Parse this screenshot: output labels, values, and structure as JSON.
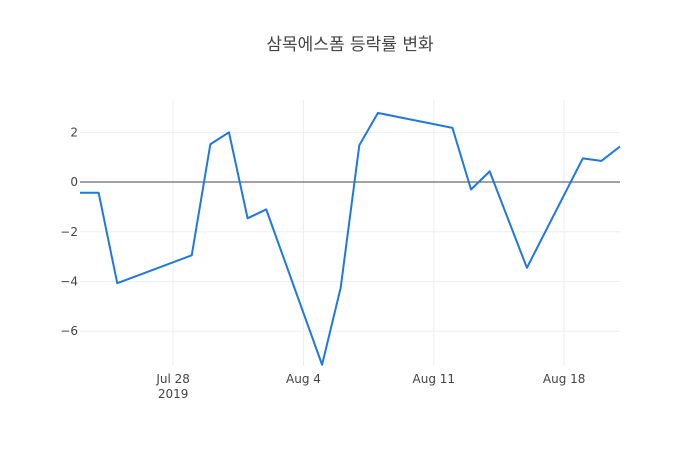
{
  "chart_data": {
    "type": "line",
    "title": "삼목에스폼 등락률 변화",
    "xlabel": "",
    "ylabel": "",
    "x_ticks": [
      {
        "date": "2019-07-28",
        "label": "Jul 28",
        "sublabel": "2019"
      },
      {
        "date": "2019-08-04",
        "label": "Aug 4",
        "sublabel": ""
      },
      {
        "date": "2019-08-11",
        "label": "Aug 11",
        "sublabel": ""
      },
      {
        "date": "2019-08-18",
        "label": "Aug 18",
        "sublabel": ""
      }
    ],
    "y_ticks": [
      2,
      0,
      -2,
      -4,
      -6
    ],
    "xlim": [
      "2019-07-23",
      "2019-08-21"
    ],
    "ylim": [
      -7.4,
      3.3
    ],
    "grid": true,
    "zero_line": true,
    "line_color": "#1f77e4",
    "series": [
      {
        "x": [
          "2019-07-23",
          "2019-07-24",
          "2019-07-25",
          "2019-07-29",
          "2019-07-30",
          "2019-07-31",
          "2019-08-01",
          "2019-08-02",
          "2019-08-05",
          "2019-08-06",
          "2019-08-07",
          "2019-08-08",
          "2019-08-12",
          "2019-08-13",
          "2019-08-14",
          "2019-08-16",
          "2019-08-19",
          "2019-08-20",
          "2019-08-21"
        ],
        "values": [
          -0.43,
          -0.43,
          -4.07,
          -2.95,
          1.52,
          2.0,
          -1.46,
          -1.1,
          -7.35,
          -4.25,
          1.48,
          2.78,
          2.18,
          -0.3,
          0.43,
          -3.45,
          0.95,
          0.85,
          1.43
        ]
      }
    ]
  }
}
